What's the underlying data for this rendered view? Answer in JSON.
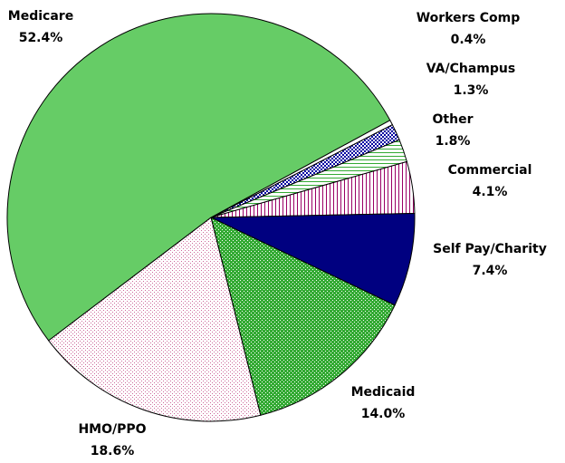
{
  "chart_data": {
    "type": "pie",
    "categories": [
      "Workers Comp",
      "VA/Champus",
      "Other",
      "Commercial",
      "Self Pay/Charity",
      "Medicaid",
      "HMO/PPO",
      "Medicare"
    ],
    "values": [
      0.4,
      1.3,
      1.8,
      4.1,
      7.4,
      14.0,
      18.6,
      52.4
    ],
    "value_labels": [
      "0.4%",
      "1.3%",
      "1.8%",
      "4.1%",
      "7.4%",
      "14.0%",
      "18.6%",
      "52.4%"
    ],
    "colors": [
      "#ffffff",
      "#0000a0",
      "#33aa33",
      "#990066",
      "#000080",
      "#33aa33",
      "#cc6699",
      "#66cc66"
    ],
    "patterns": [
      "solid",
      "checker",
      "hlines",
      "vlines",
      "solid",
      "grid",
      "dots",
      "solid"
    ]
  }
}
